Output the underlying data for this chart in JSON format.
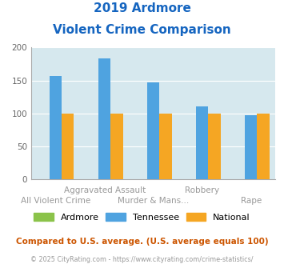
{
  "title_line1": "2019 Ardmore",
  "title_line2": "Violent Crime Comparison",
  "categories": [
    "All Violent Crime",
    "Aggravated Assault",
    "Murder & Mans...",
    "Robbery",
    "Rape"
  ],
  "ardmore": [
    0,
    0,
    0,
    0,
    0
  ],
  "tennessee": [
    157,
    183,
    147,
    111,
    98
  ],
  "national": [
    100,
    100,
    100,
    100,
    100
  ],
  "color_ardmore": "#8BC34A",
  "color_tennessee": "#4FA3E0",
  "color_national": "#F5A623",
  "ylim": [
    0,
    200
  ],
  "yticks": [
    0,
    50,
    100,
    150,
    200
  ],
  "bg_color": "#D6E8EE",
  "title_color": "#1565C0",
  "tick_label_color": "#999999",
  "footer_text": "Compared to U.S. average. (U.S. average equals 100)",
  "copyright_text": "© 2025 CityRating.com - https://www.cityrating.com/crime-statistics/",
  "footer_color": "#CC5500",
  "copyright_color": "#999999",
  "row1_labels": [
    "",
    "Aggravated Assault",
    "",
    "Robbery",
    ""
  ],
  "row2_labels": [
    "All Violent Crime",
    "",
    "Murder & Mans...",
    "",
    "Rape"
  ]
}
